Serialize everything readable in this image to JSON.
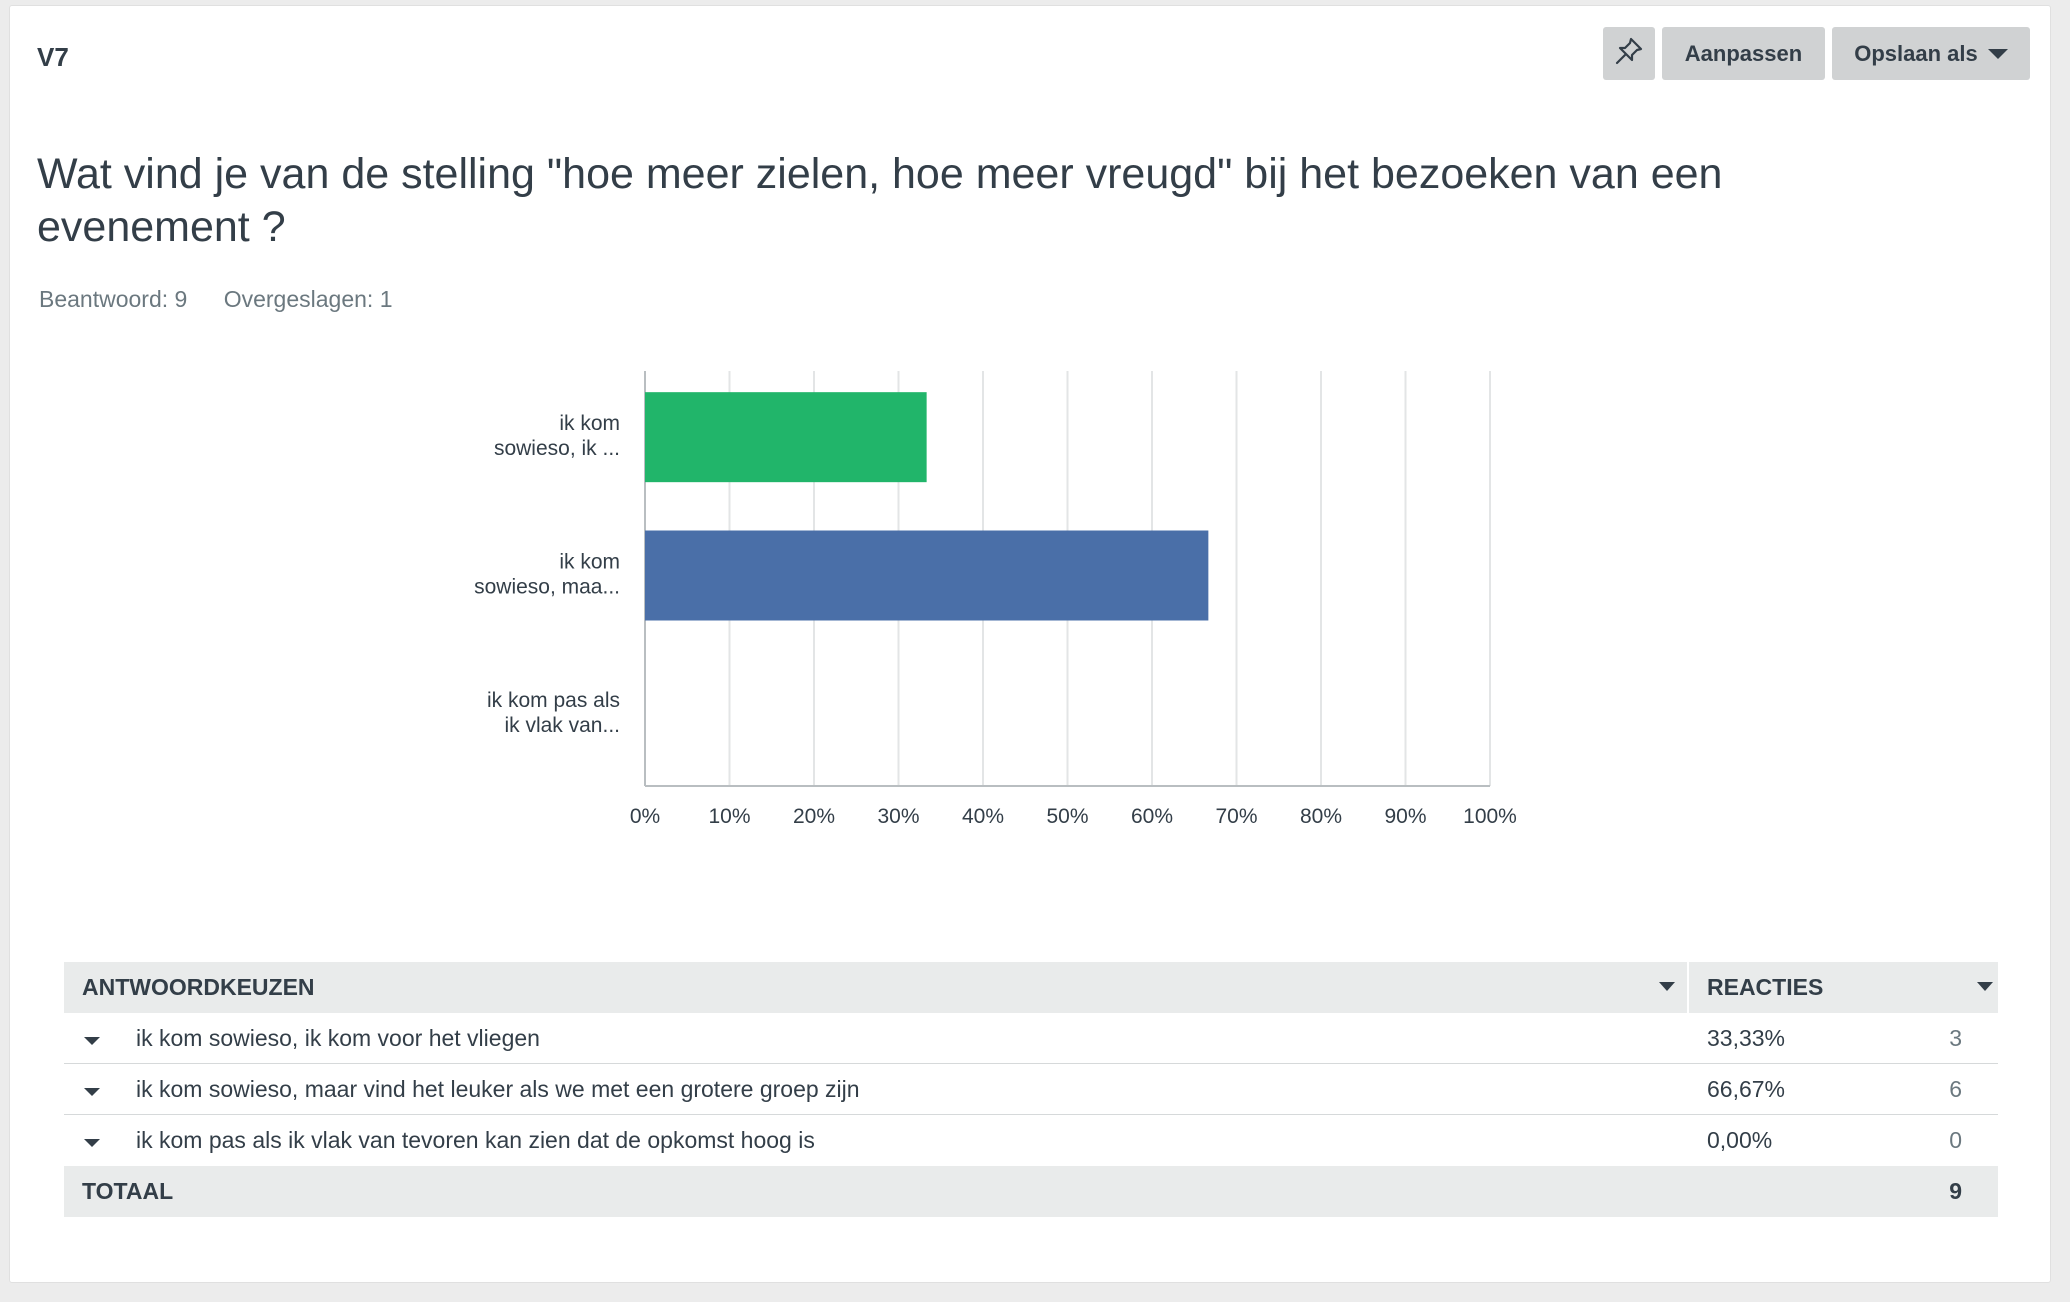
{
  "question": {
    "number": "V7",
    "title": "Wat vind je van de stelling \"hoe meer zielen, hoe meer vreugd\" bij het bezoeken van een evenement ?",
    "answered": "Beantwoord: 9",
    "skipped": "Overgeslagen: 1"
  },
  "toolbar": {
    "pin_icon": "pin-icon",
    "adjust_label": "Aanpassen",
    "save_label": "Opslaan als"
  },
  "chart_data": {
    "type": "bar",
    "orientation": "horizontal",
    "categories": [
      [
        "ik kom",
        "sowieso, ik ..."
      ],
      [
        "ik kom",
        "sowieso, maa..."
      ],
      [
        "ik kom pas als",
        "ik vlak van..."
      ]
    ],
    "values": [
      33.33,
      66.67,
      0
    ],
    "colors": [
      "#21b56a",
      "#4a6fa8",
      "#4a6fa8"
    ],
    "xlim": [
      0,
      100
    ],
    "xticks": [
      "0%",
      "10%",
      "20%",
      "30%",
      "40%",
      "50%",
      "60%",
      "70%",
      "80%",
      "90%",
      "100%"
    ],
    "grid": true
  },
  "table": {
    "headers": {
      "choices": "ANTWOORDKEUZEN",
      "responses": "REACTIES"
    },
    "rows": [
      {
        "label": "ik kom sowieso, ik kom voor het vliegen",
        "percent": "33,33%",
        "count": "3"
      },
      {
        "label": "ik kom sowieso, maar vind het leuker als we met een grotere groep zijn",
        "percent": "66,67%",
        "count": "6"
      },
      {
        "label": "ik kom pas als ik vlak van tevoren kan zien dat de opkomst hoog is",
        "percent": "0,00%",
        "count": "0"
      }
    ],
    "total_label": "TOTAAL",
    "total_count": "9"
  }
}
